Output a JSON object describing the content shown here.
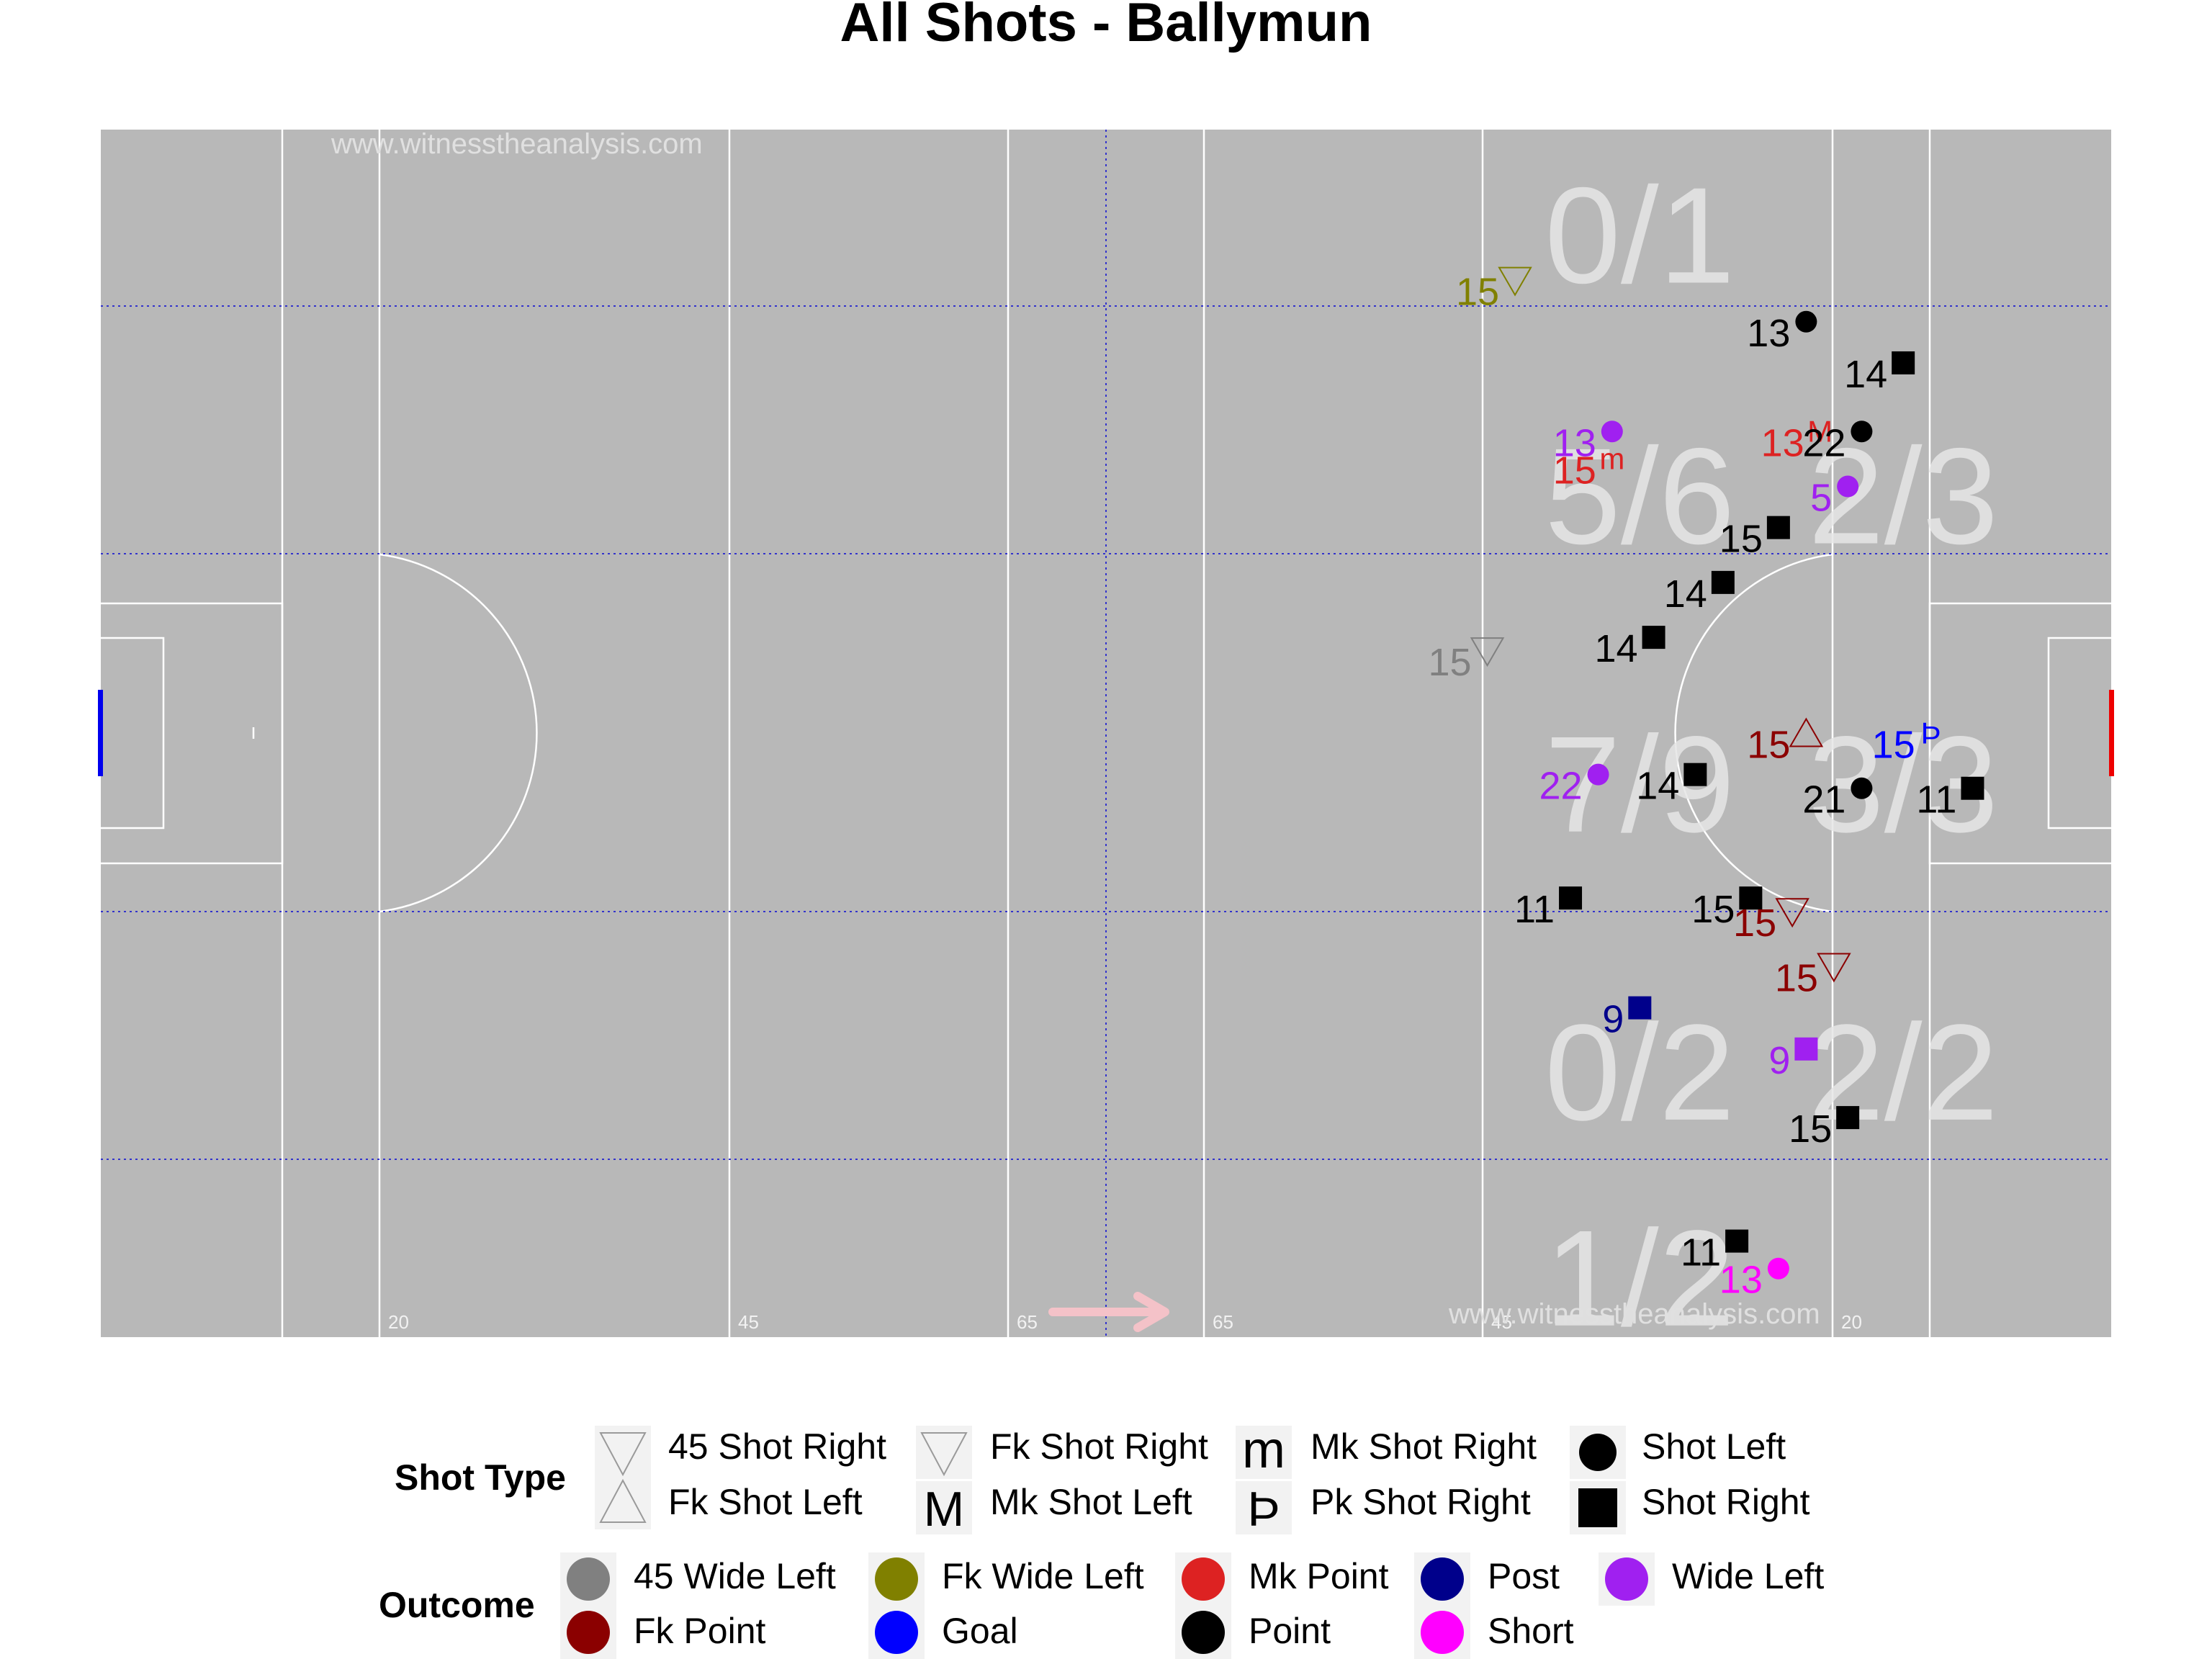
{
  "title": "All Shots - Ballymun",
  "watermark": "www.witnesstheanalysis.com",
  "colors": {
    "pitch": "#b8b8b8",
    "line": "#ffffff",
    "grid": "#3333cc",
    "zone_text": "#e6e6e6",
    "arrow": "#f4c2c8",
    "left_goal": "#0000ee",
    "right_goal": "#ee0000",
    "outcome": {
      "45 Wide Left": "#808080",
      "Fk Wide Left": "#808000",
      "Mk Point": "#dd2222",
      "Post": "#00008b",
      "Wide Left": "#a020f0",
      "Fk Point": "#8b0000",
      "Goal": "#0000ff",
      "Point": "#000000",
      "Short": "#ff00ff"
    }
  },
  "distance_labels": [
    "20",
    "45",
    "65",
    "65",
    "45",
    "20"
  ],
  "chart_data": {
    "type": "scatter",
    "title": "All Shots - Ballymun",
    "xlim": [
      0,
      145
    ],
    "ylim": [
      0,
      88
    ],
    "attack_direction": "right",
    "zone_stats": [
      {
        "label": "0/1",
        "x": 111,
        "y": 80
      },
      {
        "label": "5/6",
        "x": 111,
        "y": 61
      },
      {
        "label": "2/3",
        "x": 130,
        "y": 61
      },
      {
        "label": "7/9",
        "x": 111,
        "y": 40
      },
      {
        "label": "3/3",
        "x": 130,
        "y": 40
      },
      {
        "label": "0/2",
        "x": 111,
        "y": 19
      },
      {
        "label": "2/2",
        "x": 130,
        "y": 19
      },
      {
        "label": "1/2",
        "x": 111,
        "y": 4
      }
    ],
    "shots": [
      {
        "x": 102,
        "y": 77,
        "player": "15",
        "type": "Fk Shot Right",
        "outcome": "Fk Wide Left"
      },
      {
        "x": 123,
        "y": 74,
        "player": "13",
        "type": "Shot Left",
        "outcome": "Point"
      },
      {
        "x": 130,
        "y": 71,
        "player": "14",
        "type": "Shot Right",
        "outcome": "Point"
      },
      {
        "x": 109,
        "y": 66,
        "player": "13",
        "type": "Shot Left",
        "outcome": "Wide Left"
      },
      {
        "x": 109,
        "y": 64,
        "player": "15",
        "type": "Mk Shot Right",
        "outcome": "Mk Point"
      },
      {
        "x": 124,
        "y": 66,
        "player": "13",
        "type": "Mk Shot Left",
        "outcome": "Mk Point"
      },
      {
        "x": 127,
        "y": 66,
        "player": "22",
        "type": "Shot Left",
        "outcome": "Point"
      },
      {
        "x": 126,
        "y": 62,
        "player": "5",
        "type": "Shot Left",
        "outcome": "Wide Left"
      },
      {
        "x": 121,
        "y": 59,
        "player": "15",
        "type": "Shot Right",
        "outcome": "Point"
      },
      {
        "x": 117,
        "y": 55,
        "player": "14",
        "type": "Shot Right",
        "outcome": "Point"
      },
      {
        "x": 112,
        "y": 51,
        "player": "14",
        "type": "Shot Right",
        "outcome": "Point"
      },
      {
        "x": 100,
        "y": 50,
        "player": "15",
        "type": "Fk Shot Right",
        "outcome": "45 Wide Left"
      },
      {
        "x": 123,
        "y": 44,
        "player": "15",
        "type": "Fk Shot Left",
        "outcome": "Fk Point"
      },
      {
        "x": 132,
        "y": 44,
        "player": "15",
        "type": "Pk Shot Right",
        "outcome": "Goal"
      },
      {
        "x": 108,
        "y": 41,
        "player": "22",
        "type": "Shot Left",
        "outcome": "Wide Left"
      },
      {
        "x": 115,
        "y": 41,
        "player": "14",
        "type": "Shot Right",
        "outcome": "Point"
      },
      {
        "x": 127,
        "y": 40,
        "player": "21",
        "type": "Shot Left",
        "outcome": "Point"
      },
      {
        "x": 135,
        "y": 40,
        "player": "11",
        "type": "Shot Right",
        "outcome": "Point"
      },
      {
        "x": 106,
        "y": 32,
        "player": "11",
        "type": "Shot Right",
        "outcome": "Point"
      },
      {
        "x": 119,
        "y": 32,
        "player": "15",
        "type": "Shot Right",
        "outcome": "Point"
      },
      {
        "x": 122,
        "y": 31,
        "player": "15",
        "type": "Fk Shot Right",
        "outcome": "Fk Point"
      },
      {
        "x": 125,
        "y": 27,
        "player": "15",
        "type": "Fk Shot Right",
        "outcome": "Fk Point"
      },
      {
        "x": 111,
        "y": 24,
        "player": "9",
        "type": "Shot Right",
        "outcome": "Post"
      },
      {
        "x": 123,
        "y": 21,
        "player": "9",
        "type": "Shot Right",
        "outcome": "Wide Left"
      },
      {
        "x": 126,
        "y": 16,
        "player": "15",
        "type": "Shot Right",
        "outcome": "Point"
      },
      {
        "x": 118,
        "y": 7,
        "player": "11",
        "type": "Shot Right",
        "outcome": "Point"
      },
      {
        "x": 121,
        "y": 5,
        "player": "13",
        "type": "Shot Left",
        "outcome": "Short"
      }
    ]
  },
  "legend": {
    "shot_type": {
      "title": "Shot Type",
      "items": [
        "45 Shot Right",
        "Fk Shot Left",
        "Fk Shot Right",
        "Mk Shot Left",
        "Mk Shot Right",
        "Pk Shot Right",
        "Shot Left",
        "Shot Right"
      ],
      "glyphs": {
        "Mk Shot Right": "m",
        "Mk Shot Left": "M",
        "Pk Shot Right": "Þ"
      }
    },
    "outcome": {
      "title": "Outcome",
      "items": [
        "45 Wide Left",
        "Fk Point",
        "Fk Wide Left",
        "Goal",
        "Mk Point",
        "Point",
        "Post",
        "Short",
        "Wide Left"
      ]
    }
  }
}
